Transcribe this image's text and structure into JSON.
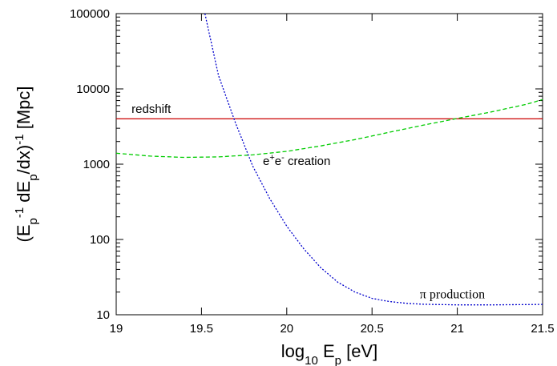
{
  "chart_data": {
    "type": "line",
    "title": "",
    "xlabel": {
      "prefix": "log",
      "sub1": "10",
      "mid": " E",
      "sub2": "p",
      "suffix": " [eV]"
    },
    "ylabel": {
      "p1": "(E",
      "sub1": "p",
      "sup1": "-1",
      "p2": " dE",
      "sub2": "p",
      "p3": "/dx)",
      "sup2": "-1",
      "p4": " [Mpc]"
    },
    "xlim": [
      19,
      21.5
    ],
    "ylim": [
      10,
      100000
    ],
    "yscale": "log",
    "x_ticks": [
      "19",
      "19.5",
      "20",
      "20.5",
      "21",
      "21.5"
    ],
    "y_ticks": [
      "10",
      "100",
      "1000",
      "10000",
      "100000"
    ],
    "grid": false,
    "series": [
      {
        "name": "redshift",
        "color": "#cc0000",
        "style": "solid",
        "x": [
          19,
          21.5
        ],
        "y": [
          4000,
          4000
        ]
      },
      {
        "name": "e+e- creation",
        "color": "#00cc00",
        "style": "dashed",
        "x": [
          19,
          19.2,
          19.4,
          19.6,
          19.8,
          20,
          20.2,
          20.4,
          20.6,
          20.8,
          21,
          21.2,
          21.4,
          21.5
        ],
        "y": [
          1400,
          1280,
          1230,
          1250,
          1330,
          1480,
          1750,
          2120,
          2650,
          3300,
          4050,
          4950,
          6200,
          7200
        ]
      },
      {
        "name": "π production",
        "color": "#0000cc",
        "style": "dotted",
        "x": [
          19.52,
          19.6,
          19.7,
          19.8,
          19.9,
          20,
          20.1,
          20.2,
          20.3,
          20.4,
          20.5,
          20.6,
          20.7,
          20.8,
          21,
          21.2,
          21.5
        ],
        "y": [
          100000,
          15000,
          3500,
          950,
          350,
          150,
          75,
          42,
          27,
          20,
          16.5,
          15,
          14.2,
          13.8,
          13.5,
          13.5,
          13.7
        ]
      }
    ],
    "annotations": [
      {
        "parts": [
          {
            "text": "redshift"
          }
        ],
        "x": 19.09,
        "y": 4800,
        "font": "sans"
      },
      {
        "parts": [
          {
            "text": "e"
          },
          {
            "text": "+",
            "sup": true
          },
          {
            "text": "e"
          },
          {
            "text": "-",
            "sup": true
          },
          {
            "text": " creation"
          }
        ],
        "x": 19.86,
        "y": 980,
        "font": "sans"
      },
      {
        "parts": [
          {
            "text": "π production"
          }
        ],
        "x": 20.78,
        "y": 16.5,
        "font": "serif"
      }
    ]
  }
}
